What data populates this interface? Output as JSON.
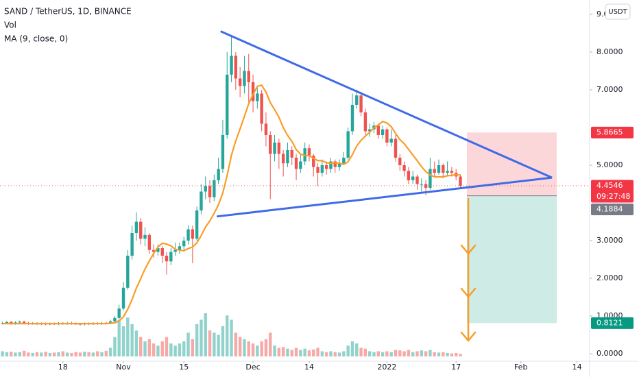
{
  "chart_data": {
    "type": "candlestick",
    "title": "SAND / TetherUS, 1D, BINANCE",
    "currency": "USDT",
    "up_color": "#26a69a",
    "down_color": "#ef5350",
    "x": [
      1,
      2,
      3,
      4,
      5,
      6,
      7,
      8,
      9,
      10,
      11,
      12,
      13,
      14,
      15,
      16,
      17,
      18,
      19,
      20,
      21,
      22,
      23,
      24,
      25,
      26,
      27,
      28,
      29,
      30,
      31,
      32,
      33,
      34,
      35,
      36,
      37,
      38,
      39,
      40,
      41,
      42,
      43,
      44,
      45,
      46,
      47,
      48,
      49,
      50,
      51,
      52,
      53,
      54,
      55,
      56,
      57,
      58,
      59,
      60,
      61,
      62,
      63,
      64,
      65,
      66,
      67,
      68,
      69,
      70,
      71,
      72,
      73,
      74,
      75,
      76,
      77,
      78,
      79,
      80,
      81,
      82,
      83,
      84,
      85,
      86,
      87,
      88,
      89,
      90,
      91,
      92,
      93,
      94,
      95,
      96,
      97,
      98,
      99,
      100,
      101,
      102,
      103,
      104,
      105,
      106,
      107
    ],
    "open": [
      0.81,
      0.82,
      0.84,
      0.8,
      0.83,
      0.85,
      0.82,
      0.8,
      0.81,
      0.79,
      0.8,
      0.78,
      0.8,
      0.79,
      0.81,
      0.8,
      0.82,
      0.8,
      0.79,
      0.78,
      0.8,
      0.79,
      0.81,
      0.8,
      0.82,
      0.81,
      0.86,
      0.95,
      1.2,
      1.75,
      2.6,
      3.2,
      3.5,
      3.05,
      3.15,
      2.75,
      2.7,
      2.8,
      2.6,
      2.45,
      2.7,
      2.75,
      2.85,
      3.0,
      3.3,
      3.05,
      3.8,
      4.3,
      4.45,
      4.15,
      4.6,
      4.9,
      5.8,
      7.4,
      7.9,
      7.3,
      7.1,
      7.5,
      7.2,
      6.7,
      6.9,
      6.1,
      5.8,
      5.3,
      5.6,
      5.3,
      5.05,
      5.4,
      5.2,
      4.9,
      5.1,
      5.45,
      5.25,
      4.95,
      4.8,
      5.0,
      4.9,
      5.1,
      4.95,
      5.05,
      5.2,
      5.9,
      6.6,
      6.85,
      6.4,
      5.9,
      5.95,
      6.05,
      5.8,
      5.95,
      5.6,
      5.7,
      5.2,
      5.0,
      4.85,
      4.6,
      4.7,
      4.5,
      4.5,
      4.4,
      4.9,
      4.8,
      5.0,
      4.8,
      4.85,
      4.8,
      4.7
    ],
    "high": [
      0.85,
      0.87,
      0.87,
      0.86,
      0.88,
      0.88,
      0.85,
      0.84,
      0.84,
      0.83,
      0.83,
      0.83,
      0.83,
      0.84,
      0.84,
      0.85,
      0.85,
      0.83,
      0.82,
      0.83,
      0.83,
      0.84,
      0.84,
      0.85,
      0.85,
      0.9,
      1.0,
      1.3,
      1.9,
      2.75,
      3.4,
      3.75,
      3.6,
      3.35,
      3.2,
      2.9,
      2.9,
      2.85,
      2.7,
      2.8,
      2.95,
      2.95,
      3.1,
      3.4,
      3.4,
      3.9,
      4.5,
      4.7,
      4.6,
      4.75,
      5.2,
      6.2,
      8.0,
      8.45,
      8.0,
      7.6,
      7.9,
      7.95,
      7.4,
      7.1,
      7.0,
      6.4,
      5.9,
      5.8,
      5.7,
      5.4,
      5.6,
      5.5,
      5.3,
      5.3,
      5.6,
      5.55,
      5.3,
      5.05,
      5.15,
      5.1,
      5.2,
      5.15,
      5.15,
      5.35,
      6.0,
      6.9,
      7.0,
      6.95,
      6.5,
      6.1,
      6.15,
      6.1,
      6.05,
      6.0,
      5.95,
      5.8,
      5.3,
      5.1,
      4.95,
      4.85,
      4.75,
      4.65,
      4.6,
      5.2,
      5.1,
      5.15,
      5.05,
      5.1,
      4.95,
      4.9,
      4.75
    ],
    "low": [
      0.78,
      0.79,
      0.77,
      0.77,
      0.8,
      0.79,
      0.77,
      0.77,
      0.76,
      0.76,
      0.75,
      0.75,
      0.76,
      0.76,
      0.77,
      0.77,
      0.77,
      0.76,
      0.75,
      0.75,
      0.76,
      0.76,
      0.77,
      0.77,
      0.78,
      0.78,
      0.84,
      0.92,
      1.15,
      1.7,
      2.5,
      3.0,
      2.9,
      2.85,
      2.65,
      2.55,
      2.6,
      2.4,
      2.1,
      2.35,
      2.6,
      2.65,
      2.75,
      2.9,
      2.4,
      3.0,
      3.7,
      4.1,
      4.0,
      4.05,
      4.5,
      4.8,
      5.7,
      7.2,
      7.0,
      6.8,
      6.9,
      6.6,
      6.4,
      6.5,
      5.9,
      5.5,
      4.1,
      5.1,
      4.9,
      4.7,
      4.95,
      5.0,
      4.6,
      4.8,
      5.0,
      5.1,
      4.7,
      4.45,
      4.7,
      4.75,
      4.8,
      4.8,
      4.85,
      5.0,
      5.15,
      5.8,
      6.5,
      6.3,
      5.8,
      5.75,
      5.85,
      5.7,
      5.7,
      5.5,
      5.5,
      5.1,
      4.85,
      4.7,
      4.5,
      4.5,
      4.35,
      4.3,
      4.2,
      4.35,
      4.7,
      4.75,
      4.65,
      4.7,
      4.7,
      4.6,
      4.4
    ],
    "close": [
      0.82,
      0.84,
      0.8,
      0.83,
      0.85,
      0.82,
      0.8,
      0.81,
      0.79,
      0.8,
      0.78,
      0.8,
      0.79,
      0.81,
      0.8,
      0.82,
      0.8,
      0.79,
      0.78,
      0.8,
      0.79,
      0.81,
      0.8,
      0.82,
      0.81,
      0.86,
      0.95,
      1.2,
      1.75,
      2.6,
      3.2,
      3.5,
      3.05,
      3.15,
      2.75,
      2.7,
      2.8,
      2.6,
      2.45,
      2.7,
      2.75,
      2.85,
      3.0,
      3.3,
      3.05,
      3.8,
      4.3,
      4.45,
      4.15,
      4.6,
      4.9,
      5.8,
      7.4,
      7.9,
      7.3,
      7.1,
      7.5,
      7.2,
      6.7,
      6.9,
      6.1,
      5.8,
      5.3,
      5.6,
      5.3,
      5.05,
      5.4,
      5.2,
      4.9,
      5.1,
      5.45,
      5.25,
      4.95,
      4.8,
      5.0,
      4.9,
      5.1,
      4.95,
      5.05,
      5.2,
      5.9,
      6.6,
      6.85,
      6.4,
      5.9,
      5.95,
      6.05,
      5.8,
      5.95,
      5.6,
      5.7,
      5.2,
      5.0,
      4.85,
      4.6,
      4.7,
      4.5,
      4.5,
      4.4,
      4.9,
      4.8,
      5.0,
      4.8,
      4.85,
      4.8,
      4.7,
      4.45
    ],
    "volume": {
      "name": "Vol",
      "values": [
        12,
        10,
        11,
        9,
        10,
        13,
        9,
        8,
        10,
        9,
        11,
        8,
        9,
        10,
        12,
        9,
        8,
        10,
        9,
        11,
        10,
        9,
        12,
        10,
        13,
        20,
        45,
        85,
        70,
        90,
        75,
        60,
        45,
        35,
        40,
        30,
        25,
        35,
        45,
        30,
        25,
        30,
        35,
        55,
        40,
        75,
        85,
        100,
        60,
        55,
        50,
        70,
        95,
        85,
        55,
        45,
        40,
        35,
        30,
        25,
        35,
        40,
        55,
        25,
        20,
        22,
        18,
        15,
        20,
        15,
        18,
        14,
        16,
        20,
        12,
        10,
        12,
        10,
        9,
        12,
        25,
        35,
        30,
        20,
        18,
        12,
        10,
        12,
        10,
        12,
        10,
        15,
        14,
        12,
        15,
        10,
        12,
        14,
        12,
        15,
        10,
        9,
        10,
        8,
        7,
        8,
        6
      ]
    },
    "ma": {
      "name": "MA (9, close, 0)",
      "color": "#f89d28",
      "values": [
        0.8,
        0.8,
        0.8,
        0.8,
        0.8,
        0.8,
        0.8,
        0.8,
        0.8,
        0.8,
        0.8,
        0.8,
        0.8,
        0.8,
        0.8,
        0.8,
        0.8,
        0.8,
        0.8,
        0.8,
        0.8,
        0.8,
        0.8,
        0.8,
        0.8,
        0.81,
        0.82,
        0.87,
        0.98,
        1.18,
        1.44,
        1.74,
        1.99,
        2.25,
        2.46,
        2.66,
        2.83,
        2.93,
        2.91,
        2.86,
        2.77,
        2.75,
        2.73,
        2.79,
        2.83,
        2.94,
        3.13,
        3.36,
        3.52,
        3.72,
        3.95,
        4.26,
        4.72,
        5.26,
        5.64,
        5.96,
        6.29,
        6.63,
        6.87,
        7.09,
        7.12,
        6.94,
        6.66,
        6.47,
        6.27,
        5.99,
        5.79,
        5.63,
        5.41,
        5.29,
        5.26,
        5.25,
        5.18,
        5.12,
        5.12,
        5.06,
        5.05,
        5.06,
        5.05,
        5.02,
        5.09,
        5.28,
        5.51,
        5.66,
        5.77,
        5.87,
        5.99,
        6.07,
        6.16,
        6.12,
        6.02,
        5.84,
        5.68,
        5.57,
        5.42,
        5.27,
        5.12,
        4.96,
        4.83,
        4.74,
        4.69,
        4.69,
        4.69,
        4.72,
        4.73,
        4.75,
        4.74
      ]
    },
    "xlim": [
      0.43,
      136.6
    ],
    "ylim": [
      -0.18,
      9.38
    ],
    "xticks": [
      {
        "value": 15,
        "label": "18"
      },
      {
        "value": 29,
        "label": "Nov"
      },
      {
        "value": 43,
        "label": "15"
      },
      {
        "value": 59,
        "label": "Dec"
      },
      {
        "value": 72,
        "label": "14"
      },
      {
        "value": 90,
        "label": "2022"
      },
      {
        "value": 106,
        "label": "17"
      },
      {
        "value": 121,
        "label": "Feb"
      },
      {
        "value": 134,
        "label": "14"
      }
    ],
    "yticks": [
      {
        "value": 0,
        "label": "0.0000"
      },
      {
        "value": 1,
        "label": "1.0000"
      },
      {
        "value": 2,
        "label": "2.0000"
      },
      {
        "value": 3,
        "label": "3.0000"
      },
      {
        "value": 5,
        "label": "5.0000"
      },
      {
        "value": 7,
        "label": "7.0000"
      },
      {
        "value": 8,
        "label": "8.0000"
      },
      {
        "value": 9,
        "label": "9.0000"
      }
    ],
    "price_line": {
      "value": 4.4546,
      "countdown": "09:27:48"
    },
    "trendlines": [
      {
        "color": "#3f6ae8",
        "x": [
          51.5,
          128.2
        ],
        "y": [
          8.55,
          4.67
        ]
      },
      {
        "color": "#3f6ae8",
        "x": [
          50.6,
          128.2
        ],
        "y": [
          3.64,
          4.67
        ]
      }
    ],
    "position": {
      "x": [
        108.5,
        129.3
      ],
      "stop": 5.8665,
      "entry": 4.1884,
      "target": 0.8121
    }
  }
}
